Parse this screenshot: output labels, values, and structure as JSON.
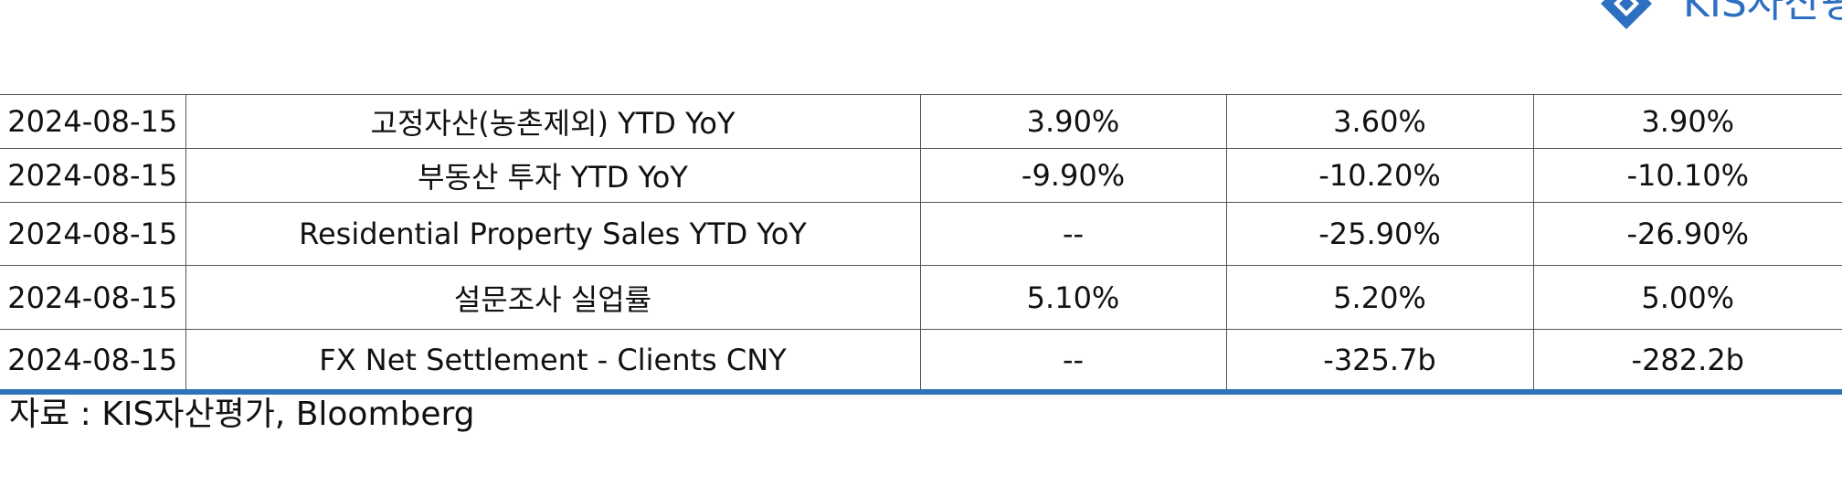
{
  "logo": {
    "text": "KIS자산평가",
    "brand_color": "#2d6fc0"
  },
  "table": {
    "rows": [
      [
        "2024-08-15",
        "고정자산(농촌제외) YTD YoY",
        "3.90%",
        "3.60%",
        "3.90%"
      ],
      [
        "2024-08-15",
        "부동산 투자 YTD YoY",
        "-9.90%",
        "-10.20%",
        "-10.10%"
      ],
      [
        "2024-08-15",
        "Residential Property Sales YTD YoY",
        "--",
        "-25.90%",
        "-26.90%"
      ],
      [
        "2024-08-15",
        "설문조사 실업률",
        "5.10%",
        "5.20%",
        "5.00%"
      ],
      [
        "2024-08-15",
        "FX Net Settlement - Clients CNY",
        "--",
        "-325.7b",
        "-282.2b"
      ]
    ]
  },
  "rule_color": "#2f73b6",
  "source": "자료 : KIS자산평가, Bloomberg"
}
